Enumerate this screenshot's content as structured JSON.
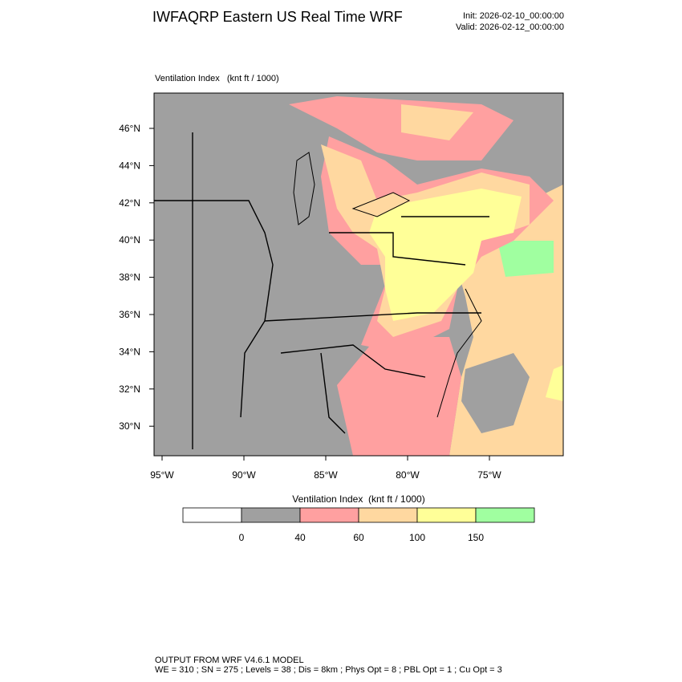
{
  "header": {
    "title": "IWFAQRP Eastern US Real Time WRF",
    "init": "Init: 2026-02-10_00:00:00",
    "valid": "Valid: 2026-02-12_00:00:00"
  },
  "map": {
    "label": "Ventilation Index   (knt ft / 1000)",
    "lat_labels": [
      "46°N",
      "44°N",
      "42°N",
      "40°N",
      "38°N",
      "36°N",
      "34°N",
      "32°N",
      "30°N"
    ],
    "lon_labels": [
      "95°W",
      "90°W",
      "85°W",
      "80°W",
      "75°W"
    ]
  },
  "colorbar": {
    "title": "Ventilation Index  (knt ft / 1000)",
    "colors": [
      "#ffffff",
      "#a0a0a0",
      "#ffa0a0",
      "#ffd8a0",
      "#ffff98",
      "#a0ffa0"
    ],
    "labels": [
      "0",
      "40",
      "60",
      "100",
      "150"
    ]
  },
  "footer": {
    "lines": [
      "OUTPUT FROM WRF V4.6.1 MODEL",
      "WE = 310 ; SN = 275 ; Levels = 38 ; Dis = 8km ; Phys Opt = 8 ; PBL Opt = 1 ; Cu Opt = 3"
    ]
  }
}
